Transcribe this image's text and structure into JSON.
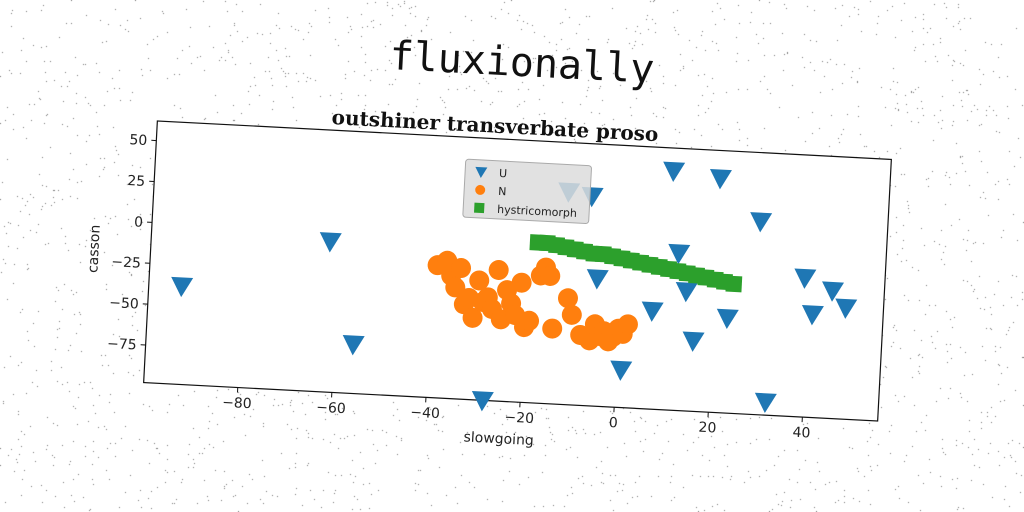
{
  "suptitle": "fluxionally",
  "chart_data": {
    "type": "scatter",
    "title": "outshiner transverbate proso",
    "xlabel": "slowgoing",
    "ylabel": "casson",
    "xlim": [
      -100,
      56
    ],
    "ylim": [
      -98,
      62
    ],
    "xticks": [
      -80,
      -60,
      -40,
      -20,
      0,
      20,
      40
    ],
    "yticks": [
      50,
      25,
      0,
      -25,
      -50,
      -75
    ],
    "grid": false,
    "legend_position": "top-center",
    "series": [
      {
        "name": "U",
        "marker": "triangle-down",
        "color": "#1f77b4",
        "points": [
          [
            -93,
            -38
          ],
          [
            -62,
            -6
          ],
          [
            -56,
            -68
          ],
          [
            -28,
            -98
          ],
          [
            -12,
            32
          ],
          [
            -7,
            30
          ],
          [
            -5,
            -20
          ],
          [
            7,
            -38
          ],
          [
            10,
            48
          ],
          [
            12,
            -2
          ],
          [
            14,
            -25
          ],
          [
            16,
            -55
          ],
          [
            20,
            45
          ],
          [
            23,
            -40
          ],
          [
            29,
            20
          ],
          [
            32,
            -90
          ],
          [
            39,
            -13
          ],
          [
            41,
            -35
          ],
          [
            45,
            -20
          ],
          [
            48,
            -30
          ],
          [
            1,
            -75
          ]
        ]
      },
      {
        "name": "N",
        "marker": "circle",
        "color": "#ff7f0e",
        "points": [
          [
            -39,
            -17
          ],
          [
            -37,
            -14
          ],
          [
            -36,
            -23
          ],
          [
            -35,
            -30
          ],
          [
            -34,
            -18
          ],
          [
            -33,
            -40
          ],
          [
            -32,
            -36
          ],
          [
            -31,
            -48
          ],
          [
            -30,
            -25
          ],
          [
            -29,
            -38
          ],
          [
            -28,
            -35
          ],
          [
            -27,
            -42
          ],
          [
            -26,
            -18
          ],
          [
            -25,
            -48
          ],
          [
            -24,
            -30
          ],
          [
            -23,
            -38
          ],
          [
            -22,
            -45
          ],
          [
            -21,
            -25
          ],
          [
            -20,
            -52
          ],
          [
            -19,
            -48
          ],
          [
            -17,
            -20
          ],
          [
            -16,
            -15
          ],
          [
            -15,
            -20
          ],
          [
            -14,
            -52
          ],
          [
            -11,
            -33
          ],
          [
            -10,
            -43
          ],
          [
            -8,
            -55
          ],
          [
            -6,
            -58
          ],
          [
            -5,
            -48
          ],
          [
            -4,
            -55
          ],
          [
            -3,
            -52
          ],
          [
            -2,
            -58
          ],
          [
            -1,
            -55
          ],
          [
            0,
            -50
          ],
          [
            1,
            -53
          ],
          [
            2,
            -47
          ]
        ]
      },
      {
        "name": "hystricomorph",
        "marker": "square",
        "color": "#2ca02c",
        "points": [
          [
            -18,
            0
          ],
          [
            -16,
            0
          ],
          [
            -14,
            -1
          ],
          [
            -12,
            -2
          ],
          [
            -10,
            -3
          ],
          [
            -8,
            -4
          ],
          [
            -6,
            -5
          ],
          [
            -4,
            -5
          ],
          [
            -2,
            -6
          ],
          [
            0,
            -7
          ],
          [
            2,
            -8
          ],
          [
            4,
            -9
          ],
          [
            6,
            -10
          ],
          [
            8,
            -11
          ],
          [
            10,
            -12
          ],
          [
            12,
            -13
          ],
          [
            14,
            -14
          ],
          [
            16,
            -15
          ],
          [
            18,
            -16
          ],
          [
            20,
            -17
          ],
          [
            22,
            -18
          ],
          [
            24,
            -19
          ]
        ]
      }
    ]
  }
}
